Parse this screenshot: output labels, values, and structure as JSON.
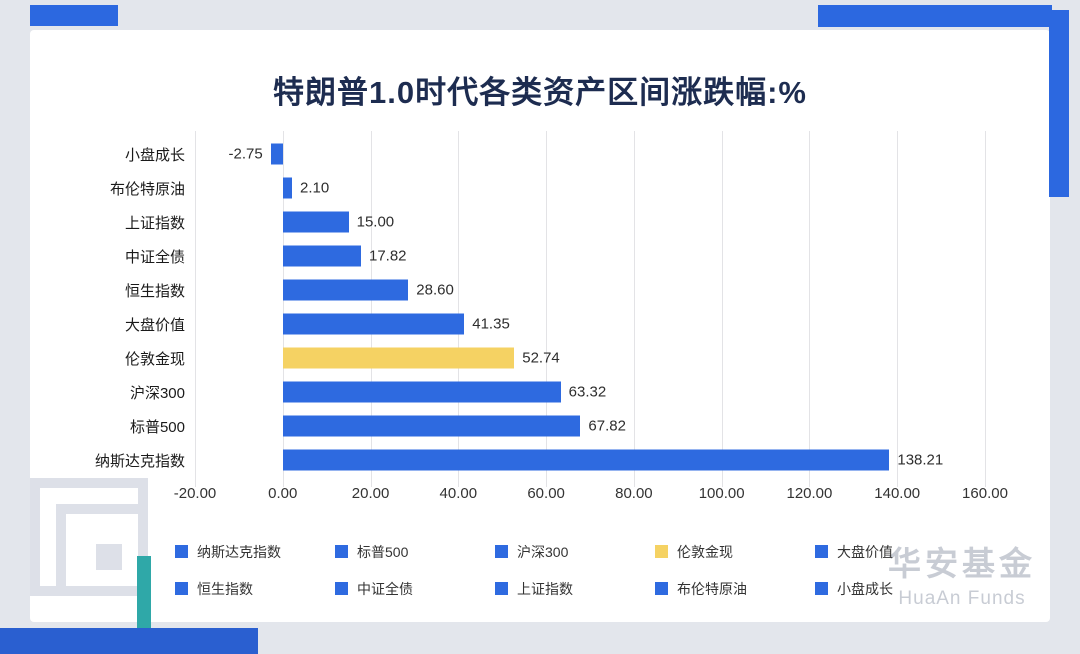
{
  "page": {
    "watermark": {
      "cn": "华安基金",
      "en": "HuaAn Funds"
    }
  },
  "colors": {
    "bar_blue": "#2e6ae0",
    "bar_gold": "#f5d263",
    "accent_blue": "#2c68e0",
    "accent_dark_blue": "#2a5fd0",
    "accent_teal": "#2fa8a8",
    "title_navy": "#1d2c50",
    "watermark_gray": "#c8ccd4"
  },
  "chart_data": {
    "type": "bar",
    "orientation": "horizontal",
    "title": "特朗普1.0时代各类资产区间涨跌幅:%",
    "categories_top_to_bottom": [
      "小盘成长",
      "布伦特原油",
      "上证指数",
      "中证全债",
      "恒生指数",
      "大盘价值",
      "伦敦金现",
      "沪深300",
      "标普500",
      "纳斯达克指数"
    ],
    "values": [
      -2.75,
      2.1,
      15.0,
      17.82,
      28.6,
      41.35,
      52.74,
      63.32,
      67.82,
      138.21
    ],
    "value_labels": [
      "-2.75",
      "2.10",
      "15.00",
      "17.82",
      "28.60",
      "41.35",
      "52.74",
      "63.32",
      "67.82",
      "138.21"
    ],
    "bar_colors": [
      "#2e6ae0",
      "#2e6ae0",
      "#2e6ae0",
      "#2e6ae0",
      "#2e6ae0",
      "#2e6ae0",
      "#f5d263",
      "#2e6ae0",
      "#2e6ae0",
      "#2e6ae0"
    ],
    "xlim": [
      -20,
      160
    ],
    "x_ticks": [
      -20,
      0,
      20,
      40,
      60,
      80,
      100,
      120,
      140,
      160
    ],
    "x_tick_labels": [
      "-20.00",
      "0.00",
      "20.00",
      "40.00",
      "60.00",
      "80.00",
      "100.00",
      "120.00",
      "140.00",
      "160.00"
    ],
    "grid": true,
    "legend": {
      "position": "bottom",
      "items": [
        {
          "label": "纳斯达克指数",
          "color": "#2e6ae0"
        },
        {
          "label": "标普500",
          "color": "#2e6ae0"
        },
        {
          "label": "沪深300",
          "color": "#2e6ae0"
        },
        {
          "label": "伦敦金现",
          "color": "#f5d263"
        },
        {
          "label": "大盘价值",
          "color": "#2e6ae0"
        },
        {
          "label": "恒生指数",
          "color": "#2e6ae0"
        },
        {
          "label": "中证全债",
          "color": "#2e6ae0"
        },
        {
          "label": "上证指数",
          "color": "#2e6ae0"
        },
        {
          "label": "布伦特原油",
          "color": "#2e6ae0"
        },
        {
          "label": "小盘成长",
          "color": "#2e6ae0"
        }
      ]
    }
  }
}
